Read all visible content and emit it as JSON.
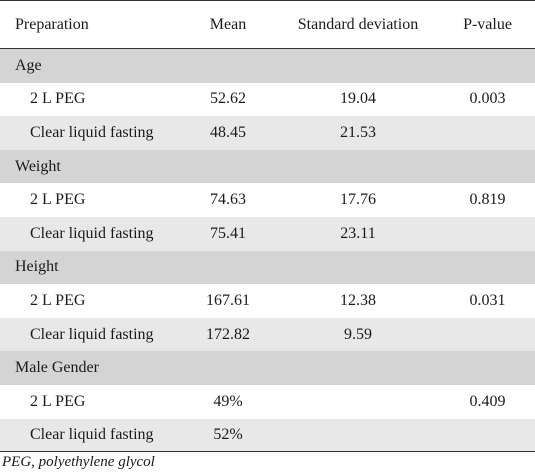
{
  "table": {
    "headers": {
      "preparation": "Preparation",
      "mean": "Mean",
      "sd": "Standard deviation",
      "p": "P-value"
    },
    "groups": [
      {
        "label": "Age",
        "rows": [
          {
            "prep": "2 L PEG",
            "mean": "52.62",
            "sd": "19.04",
            "p": "0.003"
          },
          {
            "prep": "Clear liquid fasting",
            "mean": "48.45",
            "sd": "21.53",
            "p": ""
          }
        ]
      },
      {
        "label": "Weight",
        "rows": [
          {
            "prep": "2 L PEG",
            "mean": "74.63",
            "sd": "17.76",
            "p": "0.819"
          },
          {
            "prep": "Clear liquid fasting",
            "mean": "75.41",
            "sd": "23.11",
            "p": ""
          }
        ]
      },
      {
        "label": "Height",
        "rows": [
          {
            "prep": "2 L PEG",
            "mean": "167.61",
            "sd": "12.38",
            "p": "0.031"
          },
          {
            "prep": "Clear liquid fasting",
            "mean": "172.82",
            "sd": "9.59",
            "p": ""
          }
        ]
      },
      {
        "label": "Male Gender",
        "rows": [
          {
            "prep": "2 L PEG",
            "mean": "49%",
            "sd": "",
            "p": "0.409"
          },
          {
            "prep": "Clear liquid fasting",
            "mean": "52%",
            "sd": "",
            "p": ""
          }
        ]
      }
    ]
  },
  "footnote": "PEG, polyethylene glycol"
}
